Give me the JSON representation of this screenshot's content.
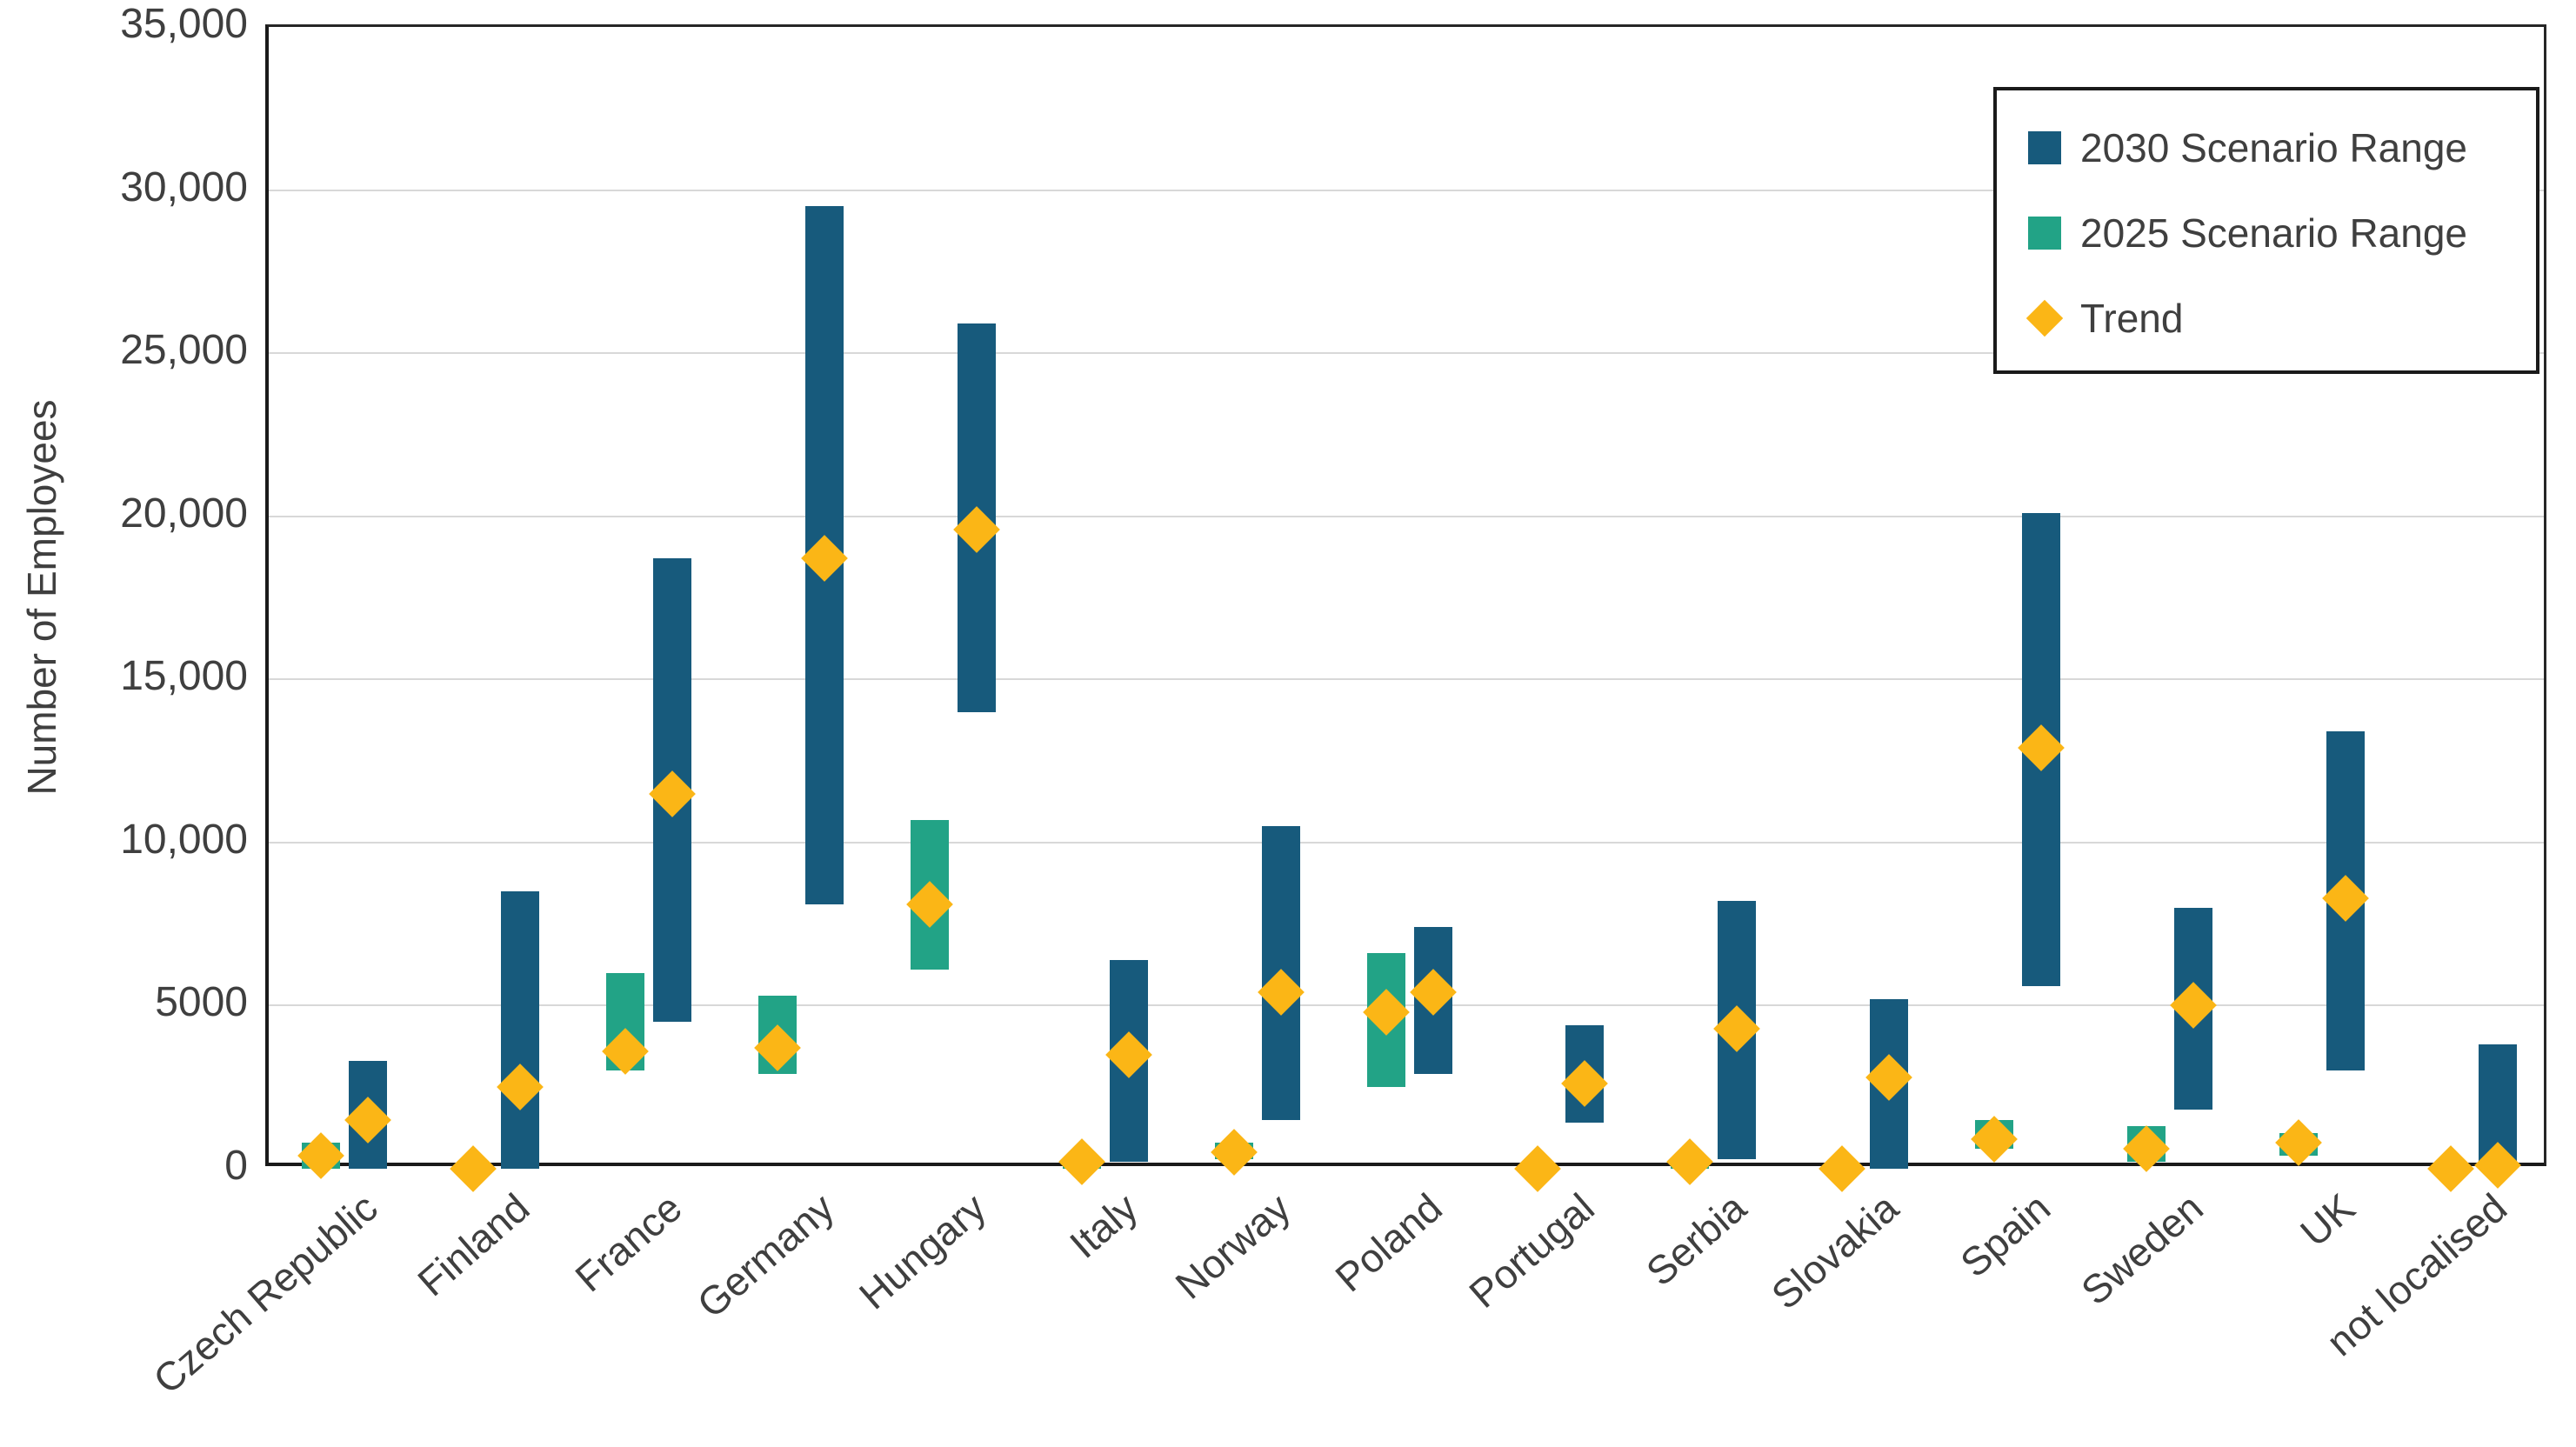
{
  "chart_data": {
    "type": "bar",
    "subtype": "floating-range-columns-with-trend-markers",
    "title": "",
    "xlabel": "",
    "ylabel": "Number of Employees",
    "ylim": [
      0,
      35000
    ],
    "ytick_interval": 5000,
    "yticks": [
      {
        "value": 0,
        "label": "0"
      },
      {
        "value": 5000,
        "label": "5000"
      },
      {
        "value": 10000,
        "label": "10,000"
      },
      {
        "value": 15000,
        "label": "15,000"
      },
      {
        "value": 20000,
        "label": "20,000"
      },
      {
        "value": 25000,
        "label": "25,000"
      },
      {
        "value": 30000,
        "label": "30,000"
      },
      {
        "value": 35000,
        "label": "35,000"
      }
    ],
    "grid": true,
    "legend_position": "top-right",
    "categories": [
      "Czech Republic",
      "Finland",
      "France",
      "Germany",
      "Hungary",
      "Italy",
      "Norway",
      "Poland",
      "Portugal",
      "Serbia",
      "Slovakia",
      "Spain",
      "Sweden",
      "UK",
      "not localised"
    ],
    "series": [
      {
        "name": "2030 Scenario Range",
        "type": "range-bar",
        "color": "#175a7c",
        "ranges": [
          [
            0,
            3300
          ],
          [
            0,
            8500
          ],
          [
            4500,
            18700
          ],
          [
            8100,
            29500
          ],
          [
            14000,
            25900
          ],
          [
            200,
            6400
          ],
          [
            1500,
            10500
          ],
          [
            2900,
            7400
          ],
          [
            1400,
            4400
          ],
          [
            300,
            8200
          ],
          [
            0,
            5200
          ],
          [
            5600,
            20100
          ],
          [
            1800,
            8000
          ],
          [
            3000,
            13400
          ],
          [
            200,
            3800
          ]
        ]
      },
      {
        "name": "2025 Scenario Range",
        "type": "range-bar",
        "color": "#22a386",
        "ranges": [
          [
            0,
            800
          ],
          null,
          [
            3000,
            6000
          ],
          [
            2900,
            5300
          ],
          [
            6100,
            10700
          ],
          [
            0,
            300
          ],
          [
            300,
            800
          ],
          [
            2500,
            6600
          ],
          null,
          [
            0,
            300
          ],
          null,
          [
            600,
            1500
          ],
          [
            200,
            1300
          ],
          [
            400,
            1100
          ],
          null
        ]
      },
      {
        "name": "Trend",
        "type": "diamond-marker",
        "color": "#fbb616",
        "values_2025_slot": [
          400,
          0,
          3600,
          3700,
          8100,
          200,
          500,
          4800,
          0,
          200,
          0,
          900,
          600,
          800,
          0
        ],
        "values_2030_slot": [
          1500,
          2500,
          11500,
          18700,
          19600,
          3500,
          5400,
          5400,
          2600,
          4300,
          2800,
          12900,
          5000,
          8300,
          100
        ]
      }
    ]
  },
  "axis": {
    "y_title": "Number of Employees"
  },
  "legend": {
    "items": [
      {
        "label": "2030 Scenario Range",
        "swatch": "square",
        "color": "#175a7c"
      },
      {
        "label": "2025 Scenario Range",
        "swatch": "square",
        "color": "#22a386"
      },
      {
        "label": "Trend",
        "swatch": "diamond",
        "color": "#fbb616"
      }
    ]
  },
  "colors": {
    "blue_2030": "#175a7c",
    "green_2025": "#22a386",
    "trend_yellow": "#fbb616",
    "gridline": "#d8d8d8",
    "frame": "#262626",
    "tick_text": "#3f3f3f"
  }
}
